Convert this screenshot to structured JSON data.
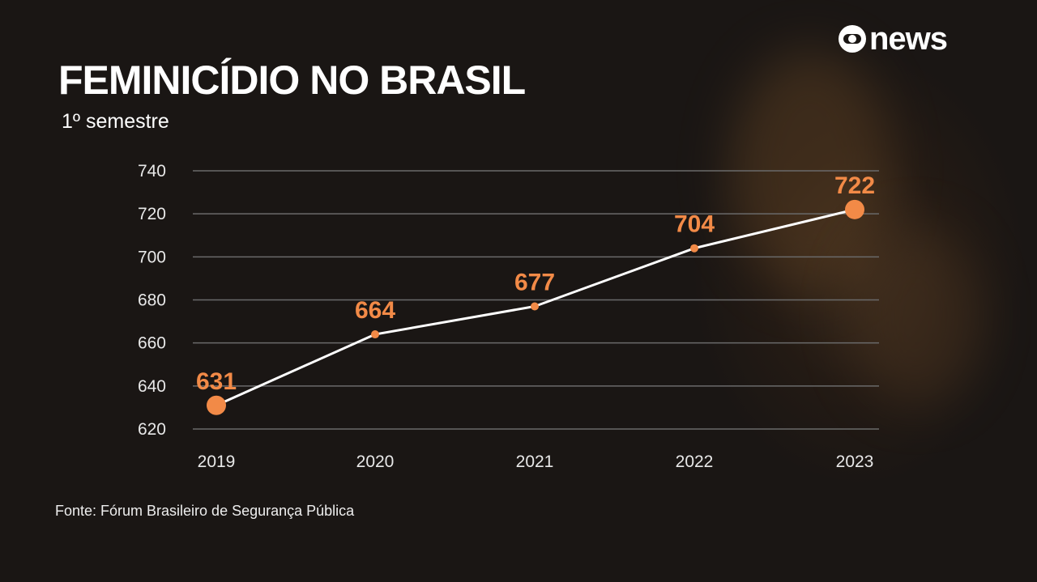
{
  "logo_text": "news",
  "chart_data": {
    "type": "line",
    "title": "FEMINICÍDIO NO BRASIL",
    "subtitle": "1º semestre",
    "categories": [
      "2019",
      "2020",
      "2021",
      "2022",
      "2023"
    ],
    "values": [
      631,
      664,
      677,
      704,
      722
    ],
    "data_labels": [
      "631",
      "664",
      "677",
      "704",
      "722"
    ],
    "yticks": [
      "740",
      "720",
      "700",
      "680",
      "660",
      "640",
      "620"
    ],
    "ylim": [
      620,
      740
    ],
    "grid": true,
    "line_color": "#ffffff",
    "marker_color": "#f28a47",
    "source": "Fonte: Fórum Brasileiro de Segurança Pública"
  }
}
